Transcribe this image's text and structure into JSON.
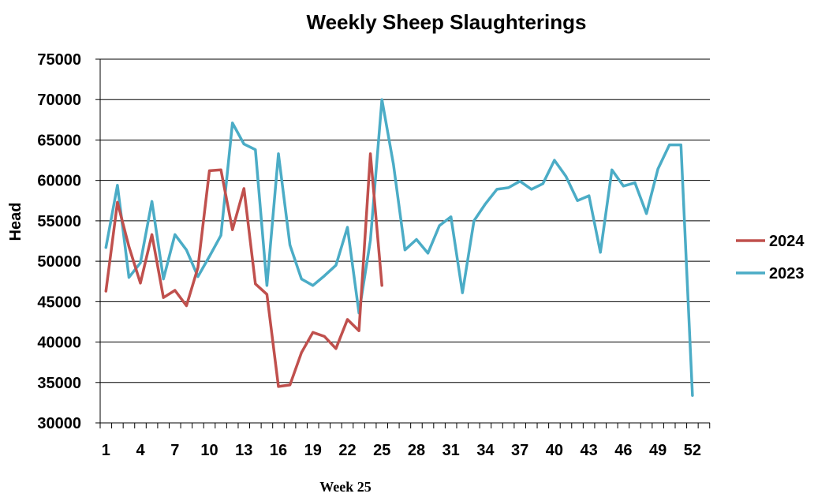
{
  "chart_data": {
    "type": "line",
    "title": "Weekly Sheep Slaughterings",
    "xlabel": "",
    "ylabel": "Head",
    "caption": "Week 25",
    "ylim": [
      30000,
      75000
    ],
    "xlim": [
      1,
      52
    ],
    "grid": true,
    "legend_position": "right",
    "x_ticks": [
      "1",
      "4",
      "7",
      "10",
      "13",
      "16",
      "19",
      "22",
      "25",
      "28",
      "31",
      "34",
      "37",
      "40",
      "43",
      "46",
      "49",
      "52"
    ],
    "y_ticks": [
      "30000",
      "35000",
      "40000",
      "45000",
      "50000",
      "55000",
      "60000",
      "65000",
      "70000",
      "75000"
    ],
    "series": [
      {
        "name": "2024",
        "color": "#c0504d",
        "x": [
          1,
          2,
          3,
          4,
          5,
          6,
          7,
          8,
          9,
          10,
          11,
          12,
          13,
          14,
          15,
          16,
          17,
          18,
          19,
          20,
          21,
          22,
          23,
          24,
          25
        ],
        "values": [
          46300,
          57300,
          51800,
          47300,
          53300,
          45500,
          46400,
          44500,
          49200,
          61200,
          61300,
          53900,
          59000,
          47200,
          45900,
          34500,
          34700,
          38700,
          41200,
          40700,
          39200,
          42800,
          41400,
          63300,
          47000
        ]
      },
      {
        "name": "2023",
        "color": "#4bacc6",
        "x": [
          1,
          2,
          3,
          4,
          5,
          6,
          7,
          8,
          9,
          10,
          11,
          12,
          13,
          14,
          15,
          16,
          17,
          18,
          19,
          20,
          21,
          22,
          23,
          24,
          25,
          26,
          27,
          28,
          29,
          30,
          31,
          32,
          33,
          34,
          35,
          36,
          37,
          38,
          39,
          40,
          41,
          42,
          43,
          44,
          45,
          46,
          47,
          48,
          49,
          50,
          51,
          52
        ],
        "values": [
          51700,
          59400,
          48000,
          49800,
          57400,
          47800,
          53300,
          51400,
          48100,
          50600,
          53200,
          67100,
          64500,
          63800,
          47000,
          63300,
          52000,
          47800,
          47000,
          48200,
          49500,
          54200,
          43600,
          52600,
          70000,
          62000,
          51400,
          52700,
          51000,
          54400,
          55500,
          46100,
          55000,
          57100,
          58900,
          59100,
          59900,
          58900,
          59600,
          62500,
          60500,
          57500,
          58100,
          51100,
          61300,
          59300,
          59700,
          55900,
          61400,
          64400,
          64400,
          33400
        ]
      }
    ]
  }
}
